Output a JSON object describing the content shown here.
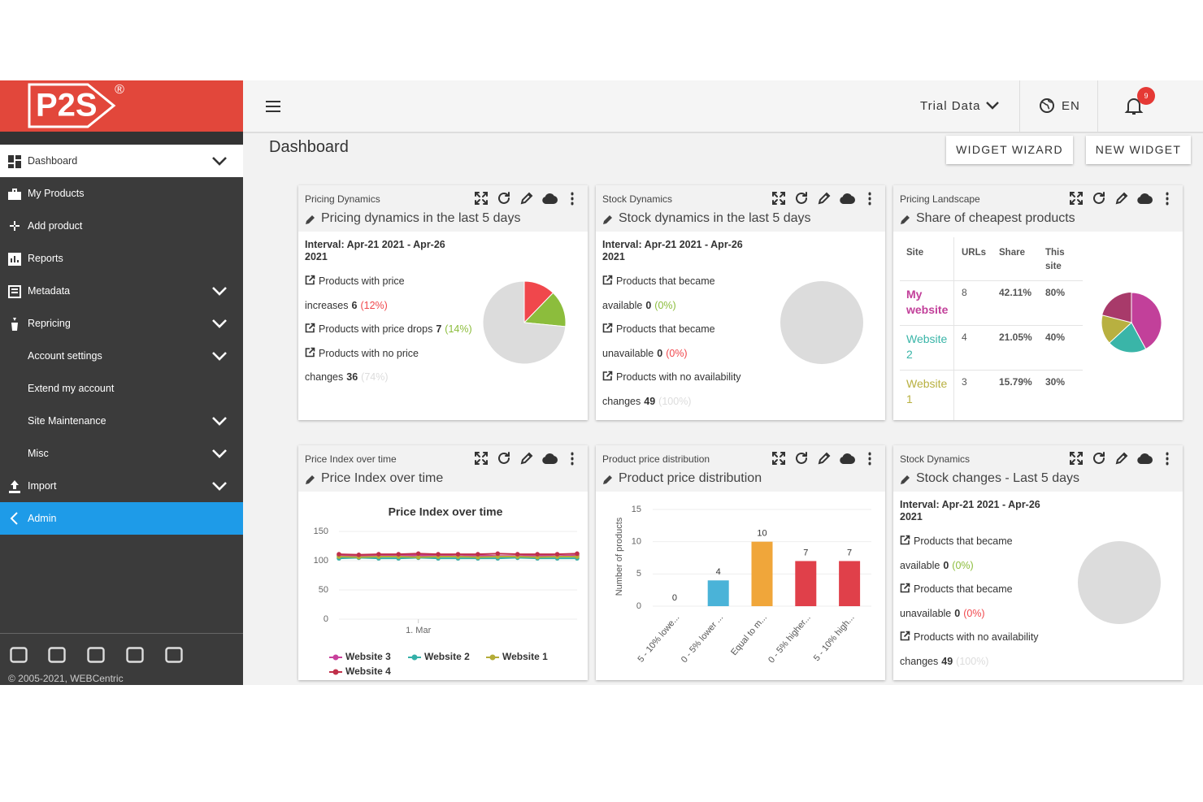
{
  "sidebar": {
    "logo": "P2S",
    "logo_mark": "®",
    "menu": [
      {
        "label": "Dashboard",
        "expandable": true,
        "selected": true
      },
      {
        "label": "My Products"
      },
      {
        "label": "Add product"
      },
      {
        "label": "Reports"
      },
      {
        "label": "Metadata",
        "expandable": true
      },
      {
        "label": "Repricing",
        "expandable": true
      },
      {
        "label": "Account settings",
        "expandable": true
      },
      {
        "label": "Extend my account"
      },
      {
        "label": "Site Maintenance",
        "expandable": true
      },
      {
        "label": "Misc",
        "expandable": true
      },
      {
        "label": "Import",
        "expandable": true
      },
      {
        "label": "Admin",
        "highlighted": true
      }
    ],
    "copyright": "© 2005-2021, WEBCentric"
  },
  "topbar": {
    "account": "Trial Data",
    "language": "EN",
    "notifications": 9
  },
  "page_title": "Dashboard",
  "buttons": [
    "WIDGET WIZARD",
    "NEW WIDGET"
  ],
  "widgets": [
    {
      "type": "stats",
      "category": "Pricing Dynamics",
      "title": "Pricing dynamics in the last 5 days",
      "interval": "Interval: Apr-21 2021 - Apr-26 2021",
      "stats": [
        {
          "label": "Products with price increases",
          "count": 6,
          "share": "(12%)",
          "color": "#f0474c"
        },
        {
          "label": "Products with price drops",
          "count": 7,
          "share": "(14%)",
          "color": "#8cbd3c"
        },
        {
          "label": "Products with no price changes",
          "count": 36,
          "share": "(74%)",
          "color": "#dcdcdc"
        }
      ]
    },
    {
      "type": "stats",
      "category": "Stock Dynamics",
      "title": "Stock dynamics in the last 5 days",
      "interval": "Interval: Apr-21 2021 - Apr-26 2021",
      "stats": [
        {
          "label": "Products that became available",
          "count": 0,
          "share": "(0%)",
          "color": "#8cbd3c"
        },
        {
          "label": "Products that became unavailable",
          "count": 0,
          "share": "(0%)",
          "color": "#f0474c"
        },
        {
          "label": "Products with no availability changes",
          "count": 49,
          "share": "(100%)",
          "color": "#dcdcdc"
        }
      ]
    },
    {
      "type": "table",
      "category": "Pricing Landscape",
      "title": "Share of cheapest products",
      "columns": [
        "Site",
        "URLs",
        "Share",
        "This site"
      ],
      "rows": [
        {
          "site": "My website",
          "urls": 8,
          "share": 42.11,
          "share_label": "42.11%",
          "this_site": "80%",
          "color": "#c2409a"
        },
        {
          "site": "Website 2",
          "urls": 4,
          "share": 21.05,
          "share_label": "21.05%",
          "this_site": "40%",
          "color": "#3ab5a8"
        },
        {
          "site": "Website 1",
          "urls": 3,
          "share": 15.79,
          "share_label": "15.79%",
          "this_site": "30%",
          "color": "#b8b040"
        }
      ]
    },
    {
      "type": "line",
      "category": "Price Index over time",
      "title": "Price Index over time",
      "chart_title": "Price Index over time",
      "categories": [
        null,
        null,
        null,
        null,
        "1. Mar",
        null,
        null,
        null,
        null,
        null,
        null,
        null,
        null
      ],
      "ylim": [
        0,
        150
      ],
      "yticks": [
        0,
        50,
        100,
        150
      ],
      "grid": true,
      "series": [
        {
          "name": "Website 3",
          "color": "#c8409c",
          "values": [
            109,
            108,
            109,
            109,
            109,
            109,
            108,
            109,
            108,
            108,
            109,
            108,
            109
          ]
        },
        {
          "name": "Website 2",
          "color": "#34b0a8",
          "values": [
            104,
            105,
            104,
            104,
            105,
            104,
            104,
            104,
            104,
            105,
            104,
            104,
            104
          ]
        },
        {
          "name": "Website 1",
          "color": "#b4ac38",
          "values": [
            107,
            106,
            107,
            107,
            106,
            107,
            107,
            106,
            107,
            107,
            106,
            107,
            107
          ]
        },
        {
          "name": "Website 4",
          "color": "#c0304a",
          "values": [
            111,
            110,
            111,
            111,
            112,
            111,
            111,
            111,
            112,
            111,
            111,
            111,
            112
          ]
        }
      ]
    },
    {
      "type": "bar",
      "category": "Product price distribution",
      "title": "Product price distribution",
      "ylabel": "Number of products",
      "categories": [
        "5 - 10% lowe...",
        "0 - 5% lower ...",
        "Equal to m...",
        "0 - 5% higher...",
        "5 - 10% high..."
      ],
      "values": [
        0,
        4,
        10,
        7,
        7
      ],
      "colors": [
        "#90c0e0",
        "#4ab3d8",
        "#f0a63a",
        "#e0404a",
        "#e0404a"
      ],
      "ylim": [
        0,
        15
      ],
      "yticks": [
        0,
        5,
        10,
        15
      ],
      "grid": true
    },
    {
      "type": "stats",
      "category": "Stock Dynamics",
      "title": "Stock changes - Last 5 days",
      "interval": "Interval: Apr-21 2021 - Apr-26 2021",
      "stats": [
        {
          "label": "Products that became available",
          "count": 0,
          "share": "(0%)",
          "color": "#8cbd3c"
        },
        {
          "label": "Products that became unavailable",
          "count": 0,
          "share": "(0%)",
          "color": "#f0474c"
        },
        {
          "label": "Products with no availability changes",
          "count": 49,
          "share": "(100%)",
          "color": "#dcdcdc"
        }
      ]
    }
  ]
}
